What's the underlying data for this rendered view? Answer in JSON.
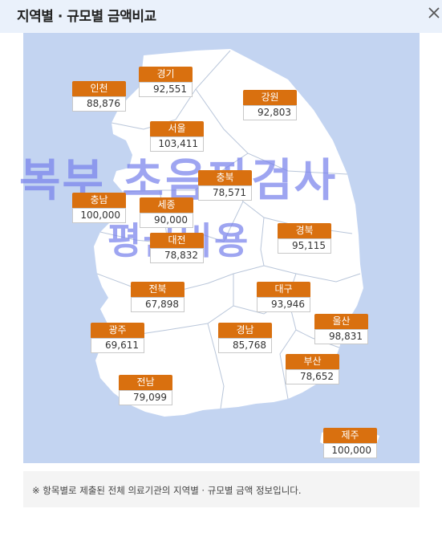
{
  "header": {
    "title": "지역별 · 규모별 금액비교",
    "close_glyph": "×"
  },
  "watermark": {
    "line1": "복부 초음파검사",
    "line2": "평균비용"
  },
  "regions": [
    {
      "name": "경기",
      "amount": "92,551"
    },
    {
      "name": "인천",
      "amount": "88,876"
    },
    {
      "name": "강원",
      "amount": "92,803"
    },
    {
      "name": "서울",
      "amount": "103,411"
    },
    {
      "name": "충북",
      "amount": "78,571"
    },
    {
      "name": "충남",
      "amount": "100,000"
    },
    {
      "name": "세종",
      "amount": "90,000"
    },
    {
      "name": "경북",
      "amount": "95,115"
    },
    {
      "name": "대전",
      "amount": "78,832"
    },
    {
      "name": "전북",
      "amount": "67,898"
    },
    {
      "name": "대구",
      "amount": "93,946"
    },
    {
      "name": "울산",
      "amount": "98,831"
    },
    {
      "name": "광주",
      "amount": "69,611"
    },
    {
      "name": "경남",
      "amount": "85,768"
    },
    {
      "name": "부산",
      "amount": "78,652"
    },
    {
      "name": "전남",
      "amount": "79,099"
    },
    {
      "name": "제주",
      "amount": "100,000"
    }
  ],
  "footnote": "※ 항목별로 제출된 전체 의료기관의 지역별 · 규모별 금액 정보입니다.",
  "colors": {
    "label_bg": "#d9700f",
    "map_land": "#ffffff",
    "map_sea": "#c3d4f1",
    "watermark": "#7882eb"
  }
}
